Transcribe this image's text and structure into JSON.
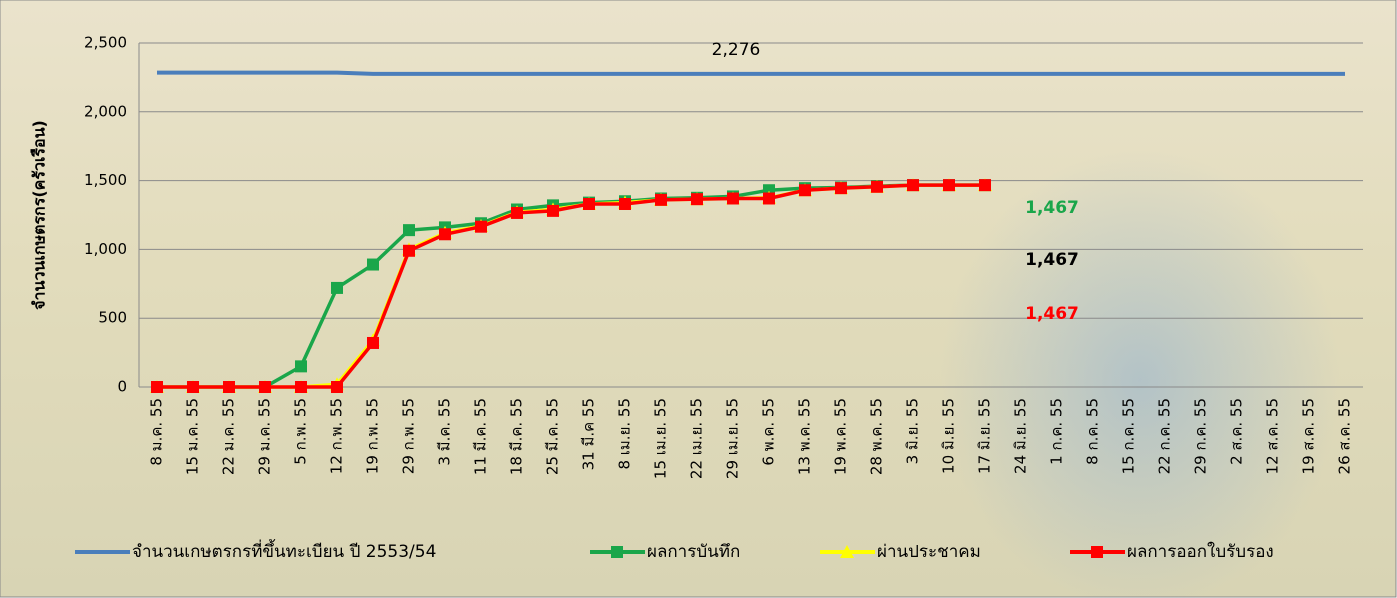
{
  "chart_data": {
    "type": "line",
    "y_label": "จำนวนเกษตรกร(ครัวเรือน)",
    "categories": [
      "8 ม.ค. 55",
      "15 ม.ค. 55",
      "22 ม.ค. 55",
      "29 ม.ค. 55",
      "5 ก.พ. 55",
      "12 ก.พ. 55",
      "19 ก.พ. 55",
      "29 ก.พ. 55",
      "3 มี.ค. 55",
      "11 มี.ค. 55",
      "18 มี.ค. 55",
      "25 มี.ค. 55",
      "31 มี.ค 55",
      "8 เม.ย. 55",
      "15 เม.ย. 55",
      "22 เม.ย. 55",
      "29 เม.ย. 55",
      "6 พ.ค. 55",
      "13 พ.ค. 55",
      "19 พ.ค. 55",
      "28 พ.ค. 55",
      "3 มิ.ย. 55",
      "10 มิ.ย. 55",
      "17 มิ.ย. 55",
      "24 มิ.ย. 55",
      "1 ก.ค. 55",
      "8 ก.ค. 55",
      "15 ก.ค. 55",
      "22 ก.ค. 55",
      "29 ก.ค. 55",
      "2 ส.ค. 55",
      "12 ส.ค. 55",
      "19 ส.ค. 55",
      "26 ส.ค. 55"
    ],
    "series": [
      {
        "name": "จำนวนเกษตรกรที่ขึ้นทะเบียน ปี 2553/54",
        "color": "#4a7ebb",
        "marker": "none",
        "values": [
          2285,
          2285,
          2285,
          2285,
          2285,
          2285,
          2276,
          2276,
          2276,
          2276,
          2276,
          2276,
          2276,
          2276,
          2276,
          2276,
          2276,
          2276,
          2276,
          2276,
          2276,
          2276,
          2276,
          2276,
          2276,
          2276,
          2276,
          2276,
          2276,
          2276,
          2276,
          2276,
          2276,
          2276
        ]
      },
      {
        "name": "ผลการบันทึก",
        "color": "#1aa64a",
        "marker": "square",
        "values": [
          0,
          0,
          0,
          0,
          150,
          720,
          890,
          1140,
          1160,
          1190,
          1290,
          1320,
          1340,
          1350,
          1370,
          1375,
          1385,
          1430,
          1445,
          1450,
          1460,
          1467,
          1467,
          1467,
          null,
          null,
          null,
          null,
          null,
          null,
          null,
          null,
          null,
          null
        ]
      },
      {
        "name": "ผ่านประชาคม",
        "color": "#ffff00",
        "marker": "triangle",
        "values": [
          0,
          0,
          0,
          0,
          0,
          20,
          340,
          1000,
          1120,
          1170,
          1270,
          1290,
          1330,
          1340,
          1360,
          1365,
          1370,
          1375,
          1430,
          1445,
          1455,
          1467,
          1467,
          1467,
          null,
          null,
          null,
          null,
          null,
          null,
          null,
          null,
          null,
          null
        ]
      },
      {
        "name": "ผลการออกใบรับรอง",
        "color": "#ff0000",
        "marker": "square",
        "values": [
          0,
          0,
          0,
          0,
          0,
          0,
          320,
          990,
          1110,
          1165,
          1265,
          1280,
          1330,
          1330,
          1360,
          1365,
          1370,
          1370,
          1430,
          1445,
          1455,
          1467,
          1467,
          1467,
          null,
          null,
          null,
          null,
          null,
          null,
          null,
          null,
          null,
          null
        ]
      }
    ],
    "annotations": [
      {
        "text": "2,276",
        "color": "#000000"
      },
      {
        "text": "1,467",
        "color": "#1aa64a"
      },
      {
        "text": "1,467",
        "color": "#000000"
      },
      {
        "text": "1,467",
        "color": "#ff0000"
      }
    ],
    "ylim": [
      0,
      2500
    ],
    "yticks": [
      0,
      500,
      {
        "value": 1000,
        "label": "1,000"
      },
      {
        "value": 1500,
        "label": "1,500"
      },
      {
        "value": 2000,
        "label": "2,000"
      },
      {
        "value": 2500,
        "label": "2,500"
      }
    ],
    "grid": true,
    "legend": "bottom"
  }
}
